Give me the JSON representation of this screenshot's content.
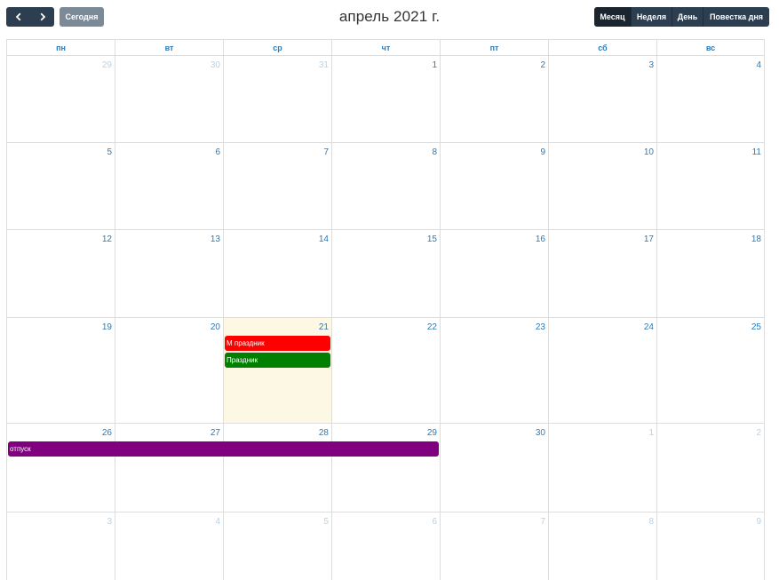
{
  "toolbar": {
    "prev_icon": "chevron-left-icon",
    "next_icon": "chevron-right-icon",
    "today_label": "Сегодня",
    "title": "апрель 2021 г.",
    "views": [
      "Месяц",
      "Неделя",
      "День",
      "Повестка дня"
    ],
    "active_view": "Месяц"
  },
  "weekdays": [
    "пн",
    "вт",
    "ср",
    "чт",
    "пт",
    "сб",
    "вс"
  ],
  "weeks": [
    [
      {
        "d": "29",
        "o": true
      },
      {
        "d": "30",
        "o": true
      },
      {
        "d": "31",
        "o": true
      },
      {
        "d": "1"
      },
      {
        "d": "2"
      },
      {
        "d": "3"
      },
      {
        "d": "4"
      }
    ],
    [
      {
        "d": "5"
      },
      {
        "d": "6"
      },
      {
        "d": "7"
      },
      {
        "d": "8"
      },
      {
        "d": "9"
      },
      {
        "d": "10"
      },
      {
        "d": "11"
      }
    ],
    [
      {
        "d": "12"
      },
      {
        "d": "13"
      },
      {
        "d": "14"
      },
      {
        "d": "15"
      },
      {
        "d": "16"
      },
      {
        "d": "17"
      },
      {
        "d": "18"
      }
    ],
    [
      {
        "d": "19"
      },
      {
        "d": "20"
      },
      {
        "d": "21",
        "today": true
      },
      {
        "d": "22"
      },
      {
        "d": "23"
      },
      {
        "d": "24"
      },
      {
        "d": "25"
      }
    ],
    [
      {
        "d": "26"
      },
      {
        "d": "27"
      },
      {
        "d": "28"
      },
      {
        "d": "29"
      },
      {
        "d": "30"
      },
      {
        "d": "1",
        "o": true
      },
      {
        "d": "2",
        "o": true
      }
    ],
    [
      {
        "d": "3",
        "o": true
      },
      {
        "d": "4",
        "o": true
      },
      {
        "d": "5",
        "o": true
      },
      {
        "d": "6",
        "o": true
      },
      {
        "d": "7",
        "o": true
      },
      {
        "d": "8",
        "o": true
      },
      {
        "d": "9",
        "o": true
      }
    ]
  ],
  "events": [
    {
      "title": "М праздник",
      "week": 3,
      "start_day": 2,
      "span": 1,
      "slot": 0,
      "color": "#ff0000"
    },
    {
      "title": "Праздник",
      "week": 3,
      "start_day": 2,
      "span": 1,
      "slot": 1,
      "color": "#008000"
    },
    {
      "title": "отпуск",
      "week": 4,
      "start_day": 0,
      "span": 4,
      "slot": 0,
      "color": "#800080"
    }
  ],
  "colors": {
    "accent": "#2a7ab8",
    "toolbar": "#2c3e50",
    "today_bg": "#fcf8e3"
  }
}
